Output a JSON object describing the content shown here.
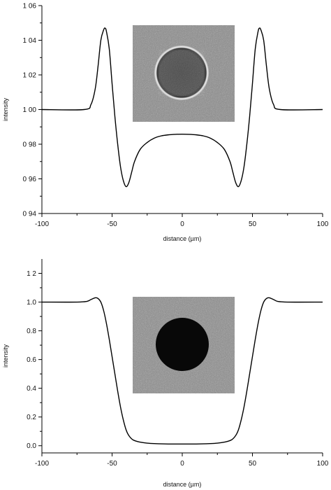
{
  "chart_data": [
    {
      "type": "line",
      "xlabel": "distance (µm)",
      "ylabel": "intensity",
      "xlim": [
        -100,
        100
      ],
      "ylim": [
        0.94,
        1.06
      ],
      "xticks": [
        "-100",
        "-50",
        "0",
        "50",
        "100"
      ],
      "yticks": [
        "0 94",
        "0 96",
        "0 98",
        "1 00",
        "1 02",
        "1 04",
        "1 06"
      ],
      "grid": false,
      "inset_image": "phase-contrast image of bright-rimmed particle",
      "series": [
        {
          "x": [
            -100,
            -70,
            -65,
            -62,
            -60,
            -58,
            -56,
            -55,
            -54,
            -52,
            -50,
            -48,
            -46,
            -44,
            -42,
            -40,
            -38,
            -36,
            -34,
            -30,
            -25,
            -20,
            -15,
            -10,
            -5,
            0,
            5,
            10,
            15,
            20,
            25,
            30,
            34,
            36,
            38,
            40,
            42,
            44,
            46,
            48,
            50,
            52,
            54,
            55,
            56,
            58,
            60,
            62,
            65,
            70,
            100
          ],
          "y": [
            1.0,
            1.0,
            1.003,
            1.012,
            1.025,
            1.04,
            1.046,
            1.047,
            1.045,
            1.035,
            1.015,
            0.996,
            0.98,
            0.967,
            0.959,
            0.9555,
            0.958,
            0.964,
            0.97,
            0.977,
            0.981,
            0.9835,
            0.9848,
            0.9854,
            0.9857,
            0.9858,
            0.9857,
            0.9854,
            0.9848,
            0.9835,
            0.981,
            0.977,
            0.97,
            0.964,
            0.958,
            0.9555,
            0.959,
            0.967,
            0.98,
            0.996,
            1.015,
            1.035,
            1.045,
            1.047,
            1.046,
            1.04,
            1.025,
            1.012,
            1.003,
            1.0,
            1.0
          ]
        }
      ]
    },
    {
      "type": "line",
      "xlabel": "distance (µm)",
      "ylabel": "intensity",
      "xlim": [
        -100,
        100
      ],
      "ylim": [
        -0.05,
        1.3
      ],
      "xticks": [
        "-100",
        "-50",
        "0",
        "50",
        "100"
      ],
      "yticks": [
        "0.0",
        "0.2",
        "0.4",
        "0.6",
        "0.8",
        "1.0",
        "1 2"
      ],
      "grid": false,
      "inset_image": "image of dark opaque particle",
      "series": [
        {
          "x": [
            -100,
            -75,
            -68,
            -65,
            -62,
            -60,
            -58,
            -56,
            -54,
            -52,
            -50,
            -48,
            -46,
            -44,
            -42,
            -40,
            -38,
            -35,
            -30,
            -25,
            -20,
            -10,
            0,
            10,
            20,
            25,
            30,
            35,
            38,
            40,
            42,
            44,
            46,
            48,
            50,
            52,
            54,
            56,
            58,
            60,
            62,
            65,
            68,
            75,
            100
          ],
          "y": [
            1.0,
            1.0,
            1.005,
            1.018,
            1.03,
            1.025,
            1.0,
            0.94,
            0.85,
            0.74,
            0.62,
            0.5,
            0.38,
            0.27,
            0.18,
            0.11,
            0.07,
            0.04,
            0.025,
            0.018,
            0.015,
            0.012,
            0.012,
            0.012,
            0.015,
            0.018,
            0.025,
            0.04,
            0.07,
            0.11,
            0.18,
            0.27,
            0.38,
            0.5,
            0.62,
            0.74,
            0.85,
            0.94,
            1.0,
            1.025,
            1.03,
            1.018,
            1.005,
            1.0,
            1.0
          ]
        }
      ]
    }
  ]
}
